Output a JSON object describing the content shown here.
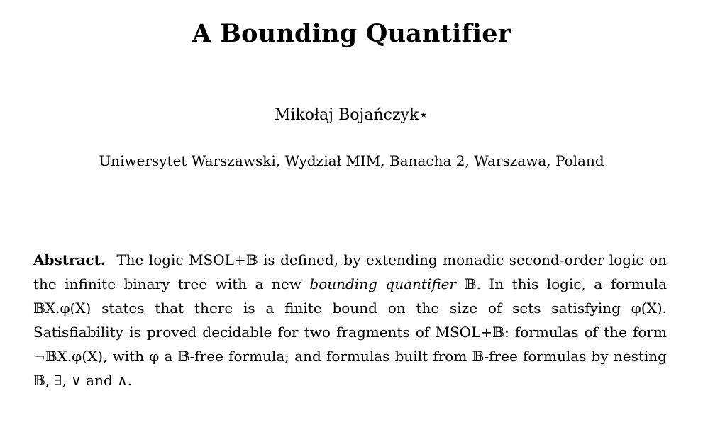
{
  "title": "A Bounding Quantifier",
  "author": "Mikołaj Bojańczyk⋆",
  "affiliation": "Uniwersytet Warszawski, Wydział MIM, Banacha 2, Warszawa, Poland",
  "abstract": {
    "label": "Abstract.",
    "text_part1": "The logic MSOL+𝔹 is defined, by extending monadic second-order logic on the infinite binary tree with a new",
    "emphasis": "bounding quantifier",
    "text_part2": "𝔹. In this logic, a formula 𝔹X.φ(X) states that there is a finite bound on the size of sets satisfying φ(X). Satisfiability is proved decidable for two fragments of MSOL+𝔹: formulas of the form ¬𝔹X.φ(X), with φ a 𝔹-free formula; and formulas built from 𝔹-free formulas by nesting 𝔹, ∃, ∨ and ∧."
  }
}
